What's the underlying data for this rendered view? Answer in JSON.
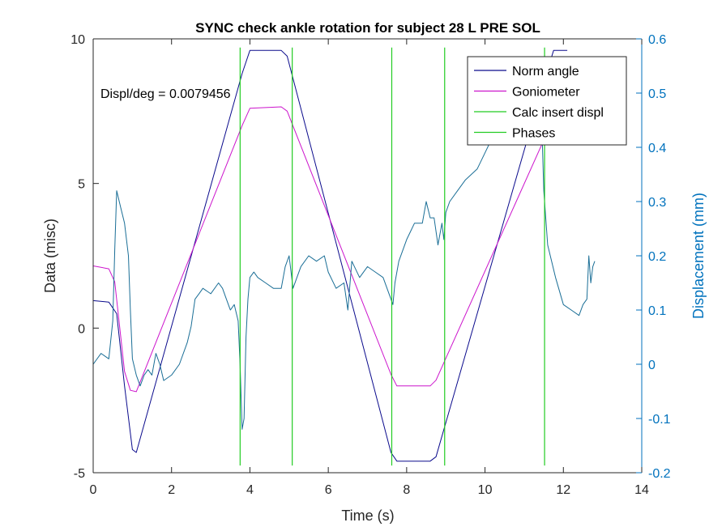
{
  "chart_data": {
    "type": "line",
    "title": "SYNC check ankle rotation for subject 28 L PRE SOL",
    "xlabel": "Time (s)",
    "ylabel_left": "Data (misc)",
    "ylabel_right": "Displacement (mm)",
    "xlim": [
      0,
      14
    ],
    "ylim_left": [
      -5,
      10
    ],
    "ylim_right": [
      -0.2,
      0.6
    ],
    "x_ticks": [
      0,
      2,
      4,
      6,
      8,
      10,
      12,
      14
    ],
    "y_left_ticks": [
      -5,
      0,
      5,
      10
    ],
    "y_right_ticks": [
      -0.2,
      -0.1,
      0,
      0.1,
      0.2,
      0.3,
      0.4,
      0.5,
      0.6
    ],
    "y_right_tick_labels": [
      "-0.2",
      "-0.1",
      "0",
      "0.1",
      "0.2",
      "0.3",
      "0.4",
      "0.5",
      "0.6"
    ],
    "grid": false,
    "legend_position": "top-right",
    "legend": [
      "Norm angle",
      "Goniometer",
      "Calc insert displ",
      "Phases"
    ],
    "annotation": "Displ/deg = 0.0079456",
    "colors": {
      "norm_angle": "#0a0a8c",
      "goniometer": "#cc14cc",
      "calc_insert_displ": "#1a6e96",
      "phases": "#22cc22",
      "right_axis": "#0072bd",
      "axes": "#262626"
    },
    "series": [
      {
        "name": "Norm angle",
        "axis": "left",
        "x": [
          0,
          0.4,
          0.6,
          0.8,
          1.0,
          1.1,
          3.8,
          4.0,
          4.8,
          4.95,
          7.6,
          7.75,
          8.6,
          8.75,
          11.5,
          11.75,
          12.1
        ],
        "y": [
          0.95,
          0.9,
          0.5,
          -2.0,
          -4.2,
          -4.3,
          8.8,
          9.6,
          9.6,
          9.4,
          -4.3,
          -4.6,
          -4.6,
          -4.45,
          8.5,
          9.6,
          9.6
        ]
      },
      {
        "name": "Goniometer",
        "axis": "left",
        "x": [
          0,
          0.4,
          0.55,
          0.8,
          0.95,
          1.1,
          3.8,
          4.0,
          4.8,
          4.95,
          7.6,
          7.75,
          8.6,
          8.75,
          11.5
        ],
        "y": [
          2.15,
          2.05,
          1.6,
          -1.5,
          -2.15,
          -2.2,
          7.0,
          7.6,
          7.65,
          7.5,
          -1.6,
          -2.0,
          -2.0,
          -1.8,
          6.5
        ]
      },
      {
        "name": "Calc insert displ",
        "axis": "right",
        "x": [
          0,
          0.2,
          0.4,
          0.5,
          0.55,
          0.6,
          0.7,
          0.8,
          0.9,
          0.95,
          1.0,
          1.1,
          1.2,
          1.3,
          1.4,
          1.5,
          1.6,
          1.7,
          1.8,
          2.0,
          2.2,
          2.4,
          2.5,
          2.6,
          2.7,
          2.8,
          3.0,
          3.2,
          3.3,
          3.4,
          3.5,
          3.6,
          3.7,
          3.75,
          3.8,
          3.85,
          3.9,
          3.95,
          4.0,
          4.1,
          4.2,
          4.4,
          4.6,
          4.8,
          4.9,
          5.0,
          5.1,
          5.3,
          5.5,
          5.7,
          5.9,
          6.0,
          6.2,
          6.4,
          6.5,
          6.6,
          6.8,
          7.0,
          7.2,
          7.4,
          7.6,
          7.65,
          7.7,
          7.8,
          8.0,
          8.2,
          8.4,
          8.5,
          8.6,
          8.7,
          8.8,
          8.9,
          8.95,
          9.0,
          9.1,
          9.3,
          9.5,
          9.8,
          10.0,
          10.2,
          10.5,
          10.8,
          11.0,
          11.1,
          11.2,
          11.4,
          11.5,
          11.6,
          11.8,
          12.0,
          12.2,
          12.4,
          12.5,
          12.6,
          12.65,
          12.7,
          12.75,
          12.8
        ],
        "y": [
          0.0,
          0.02,
          0.01,
          0.08,
          0.21,
          0.32,
          0.29,
          0.26,
          0.2,
          0.1,
          0.01,
          -0.02,
          -0.04,
          -0.02,
          -0.01,
          -0.02,
          0.02,
          0.0,
          -0.03,
          -0.02,
          0.0,
          0.04,
          0.07,
          0.12,
          0.13,
          0.14,
          0.13,
          0.15,
          0.14,
          0.12,
          0.1,
          0.11,
          0.08,
          0.0,
          -0.12,
          -0.1,
          0.05,
          0.12,
          0.16,
          0.17,
          0.16,
          0.15,
          0.14,
          0.14,
          0.18,
          0.2,
          0.14,
          0.18,
          0.2,
          0.19,
          0.2,
          0.17,
          0.14,
          0.15,
          0.1,
          0.19,
          0.16,
          0.18,
          0.17,
          0.16,
          0.12,
          0.11,
          0.15,
          0.19,
          0.23,
          0.26,
          0.26,
          0.3,
          0.27,
          0.27,
          0.22,
          0.26,
          0.23,
          0.28,
          0.3,
          0.32,
          0.34,
          0.36,
          0.39,
          0.42,
          0.44,
          0.48,
          0.5,
          0.52,
          0.54,
          0.56,
          0.32,
          0.22,
          0.16,
          0.11,
          0.1,
          0.09,
          0.11,
          0.12,
          0.2,
          0.15,
          0.18,
          0.19
        ]
      },
      {
        "name": "Phases",
        "type": "vlines",
        "x": [
          3.75,
          5.08,
          7.62,
          8.97,
          11.52
        ]
      }
    ]
  }
}
